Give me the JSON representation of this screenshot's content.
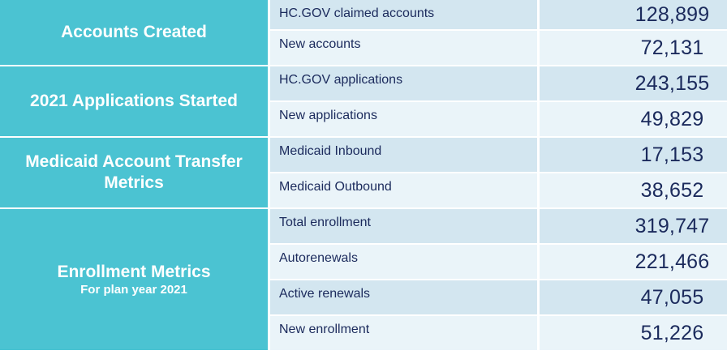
{
  "chart_data": {
    "type": "table",
    "title": "",
    "groups": [
      {
        "title": "Accounts Created",
        "subtitle": "",
        "rows": [
          {
            "label": "HC.GOV claimed accounts",
            "value": "128,899"
          },
          {
            "label": "New accounts",
            "value": "72,131"
          }
        ]
      },
      {
        "title": "2021 Applications Started",
        "subtitle": "",
        "rows": [
          {
            "label": "HC.GOV applications",
            "value": "243,155"
          },
          {
            "label": "New applications",
            "value": "49,829"
          }
        ]
      },
      {
        "title": "Medicaid Account Transfer Metrics",
        "subtitle": "",
        "rows": [
          {
            "label": "Medicaid Inbound",
            "value": "17,153"
          },
          {
            "label": "Medicaid Outbound",
            "value": "38,652"
          }
        ]
      },
      {
        "title": "Enrollment Metrics",
        "subtitle": "For plan year 2021",
        "rows": [
          {
            "label": "Total enrollment",
            "value": "319,747"
          },
          {
            "label": "Autorenewals",
            "value": "221,466"
          },
          {
            "label": "Active renewals",
            "value": "47,055"
          },
          {
            "label": "New enrollment",
            "value": "51,226"
          }
        ]
      }
    ]
  },
  "colors": {
    "group_background": "#4bc3d2",
    "row_dark_background": "#d3e6f0",
    "row_light_background": "#eaf4f9",
    "text_navy": "#1b2a5c",
    "group_text": "#ffffff",
    "separator": "#ffffff"
  }
}
